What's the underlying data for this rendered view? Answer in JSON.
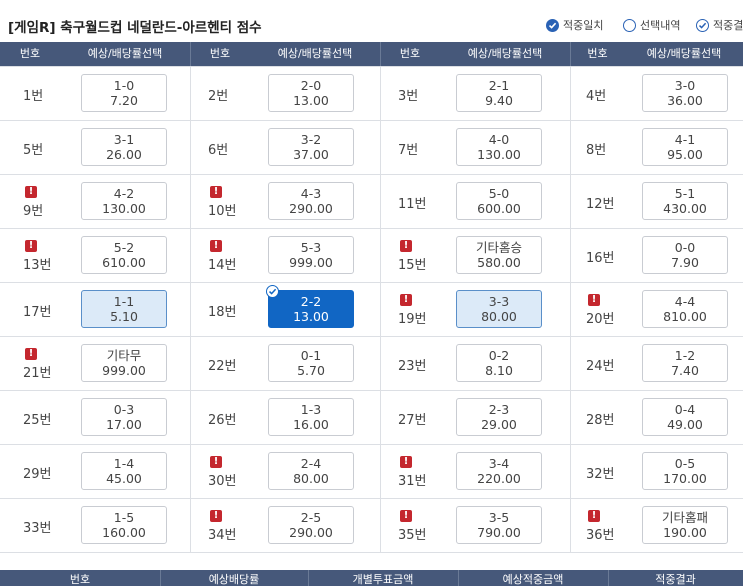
{
  "header": {
    "title": "[게임R] 축구월드컵 네덜란드-아르헨티 점수",
    "legend": [
      {
        "label": "적중일치",
        "style": "filled"
      },
      {
        "label": "선택내역",
        "style": "empty"
      },
      {
        "label": "적중결",
        "style": "outline"
      }
    ]
  },
  "table_header": [
    {
      "num_label": "번호",
      "odds_label": "예상/배당률선택"
    },
    {
      "num_label": "번호",
      "odds_label": "예상/배당률선택"
    },
    {
      "num_label": "번호",
      "odds_label": "예상/배당률선택"
    },
    {
      "num_label": "번호",
      "odds_label": "예상/배당률선택"
    }
  ],
  "rows": [
    [
      {
        "num": "1번",
        "score": "1-0",
        "rate": "7.20",
        "warn": false,
        "state": "normal"
      },
      {
        "num": "2번",
        "score": "2-0",
        "rate": "13.00",
        "warn": false,
        "state": "normal"
      },
      {
        "num": "3번",
        "score": "2-1",
        "rate": "9.40",
        "warn": false,
        "state": "normal"
      },
      {
        "num": "4번",
        "score": "3-0",
        "rate": "36.00",
        "warn": false,
        "state": "normal"
      }
    ],
    [
      {
        "num": "5번",
        "score": "3-1",
        "rate": "26.00",
        "warn": false,
        "state": "normal"
      },
      {
        "num": "6번",
        "score": "3-2",
        "rate": "37.00",
        "warn": false,
        "state": "normal"
      },
      {
        "num": "7번",
        "score": "4-0",
        "rate": "130.00",
        "warn": false,
        "state": "normal"
      },
      {
        "num": "8번",
        "score": "4-1",
        "rate": "95.00",
        "warn": false,
        "state": "normal"
      }
    ],
    [
      {
        "num": "9번",
        "score": "4-2",
        "rate": "130.00",
        "warn": true,
        "state": "normal"
      },
      {
        "num": "10번",
        "score": "4-3",
        "rate": "290.00",
        "warn": true,
        "state": "normal"
      },
      {
        "num": "11번",
        "score": "5-0",
        "rate": "600.00",
        "warn": false,
        "state": "normal"
      },
      {
        "num": "12번",
        "score": "5-1",
        "rate": "430.00",
        "warn": false,
        "state": "normal"
      }
    ],
    [
      {
        "num": "13번",
        "score": "5-2",
        "rate": "610.00",
        "warn": true,
        "state": "normal"
      },
      {
        "num": "14번",
        "score": "5-3",
        "rate": "999.00",
        "warn": true,
        "state": "normal"
      },
      {
        "num": "15번",
        "score": "기타홈승",
        "rate": "580.00",
        "warn": true,
        "state": "normal"
      },
      {
        "num": "16번",
        "score": "0-0",
        "rate": "7.90",
        "warn": false,
        "state": "normal"
      }
    ],
    [
      {
        "num": "17번",
        "score": "1-1",
        "rate": "5.10",
        "warn": false,
        "state": "highlight"
      },
      {
        "num": "18번",
        "score": "2-2",
        "rate": "13.00",
        "warn": false,
        "state": "selected"
      },
      {
        "num": "19번",
        "score": "3-3",
        "rate": "80.00",
        "warn": true,
        "state": "highlight"
      },
      {
        "num": "20번",
        "score": "4-4",
        "rate": "810.00",
        "warn": true,
        "state": "normal"
      }
    ],
    [
      {
        "num": "21번",
        "score": "기타무",
        "rate": "999.00",
        "warn": true,
        "state": "normal"
      },
      {
        "num": "22번",
        "score": "0-1",
        "rate": "5.70",
        "warn": false,
        "state": "normal"
      },
      {
        "num": "23번",
        "score": "0-2",
        "rate": "8.10",
        "warn": false,
        "state": "normal"
      },
      {
        "num": "24번",
        "score": "1-2",
        "rate": "7.40",
        "warn": false,
        "state": "normal"
      }
    ],
    [
      {
        "num": "25번",
        "score": "0-3",
        "rate": "17.00",
        "warn": false,
        "state": "normal"
      },
      {
        "num": "26번",
        "score": "1-3",
        "rate": "16.00",
        "warn": false,
        "state": "normal"
      },
      {
        "num": "27번",
        "score": "2-3",
        "rate": "29.00",
        "warn": false,
        "state": "normal"
      },
      {
        "num": "28번",
        "score": "0-4",
        "rate": "49.00",
        "warn": false,
        "state": "normal"
      }
    ],
    [
      {
        "num": "29번",
        "score": "1-4",
        "rate": "45.00",
        "warn": false,
        "state": "normal"
      },
      {
        "num": "30번",
        "score": "2-4",
        "rate": "80.00",
        "warn": true,
        "state": "normal"
      },
      {
        "num": "31번",
        "score": "3-4",
        "rate": "220.00",
        "warn": true,
        "state": "normal"
      },
      {
        "num": "32번",
        "score": "0-5",
        "rate": "170.00",
        "warn": false,
        "state": "normal"
      }
    ],
    [
      {
        "num": "33번",
        "score": "1-5",
        "rate": "160.00",
        "warn": false,
        "state": "normal"
      },
      {
        "num": "34번",
        "score": "2-5",
        "rate": "290.00",
        "warn": true,
        "state": "normal"
      },
      {
        "num": "35번",
        "score": "3-5",
        "rate": "790.00",
        "warn": true,
        "state": "normal"
      },
      {
        "num": "36번",
        "score": "기타홈패",
        "rate": "190.00",
        "warn": true,
        "state": "normal"
      }
    ]
  ],
  "footer_header": [
    "번호",
    "예상배당률",
    "개별투표금액",
    "예상적중금액",
    "적중결과"
  ],
  "colors": {
    "header_bar": "#46587a",
    "selected": "#1166c4",
    "highlight": "#dceaf8",
    "warning": "#c4272e"
  }
}
